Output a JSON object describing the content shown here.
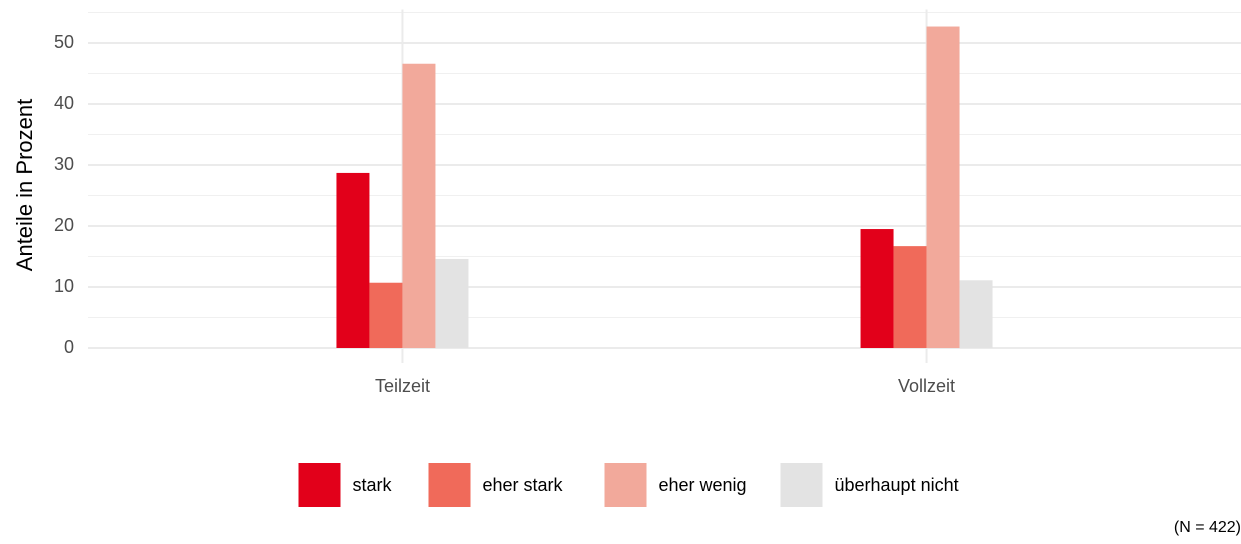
{
  "chart_data": {
    "type": "bar",
    "ylabel": "Anteile in Prozent",
    "caption": "(N = 422)",
    "categories": [
      "Teilzeit",
      "Vollzeit"
    ],
    "series": [
      {
        "name": "stark",
        "color": "#e2001a",
        "values": [
          28.7,
          19.5
        ]
      },
      {
        "name": "eher stark",
        "color": "#f06a5a",
        "values": [
          10.7,
          16.7
        ]
      },
      {
        "name": "eher wenig",
        "color": "#f2a99b",
        "values": [
          46.6,
          52.7
        ]
      },
      {
        "name": "überhaupt nicht",
        "color": "#e3e3e3",
        "values": [
          14.6,
          11.1
        ]
      }
    ],
    "ylim": [
      0,
      55.5
    ],
    "yticks": [
      0,
      10,
      20,
      30,
      40,
      50
    ],
    "grid": true,
    "minor_grid": true,
    "legend": "bottom"
  }
}
